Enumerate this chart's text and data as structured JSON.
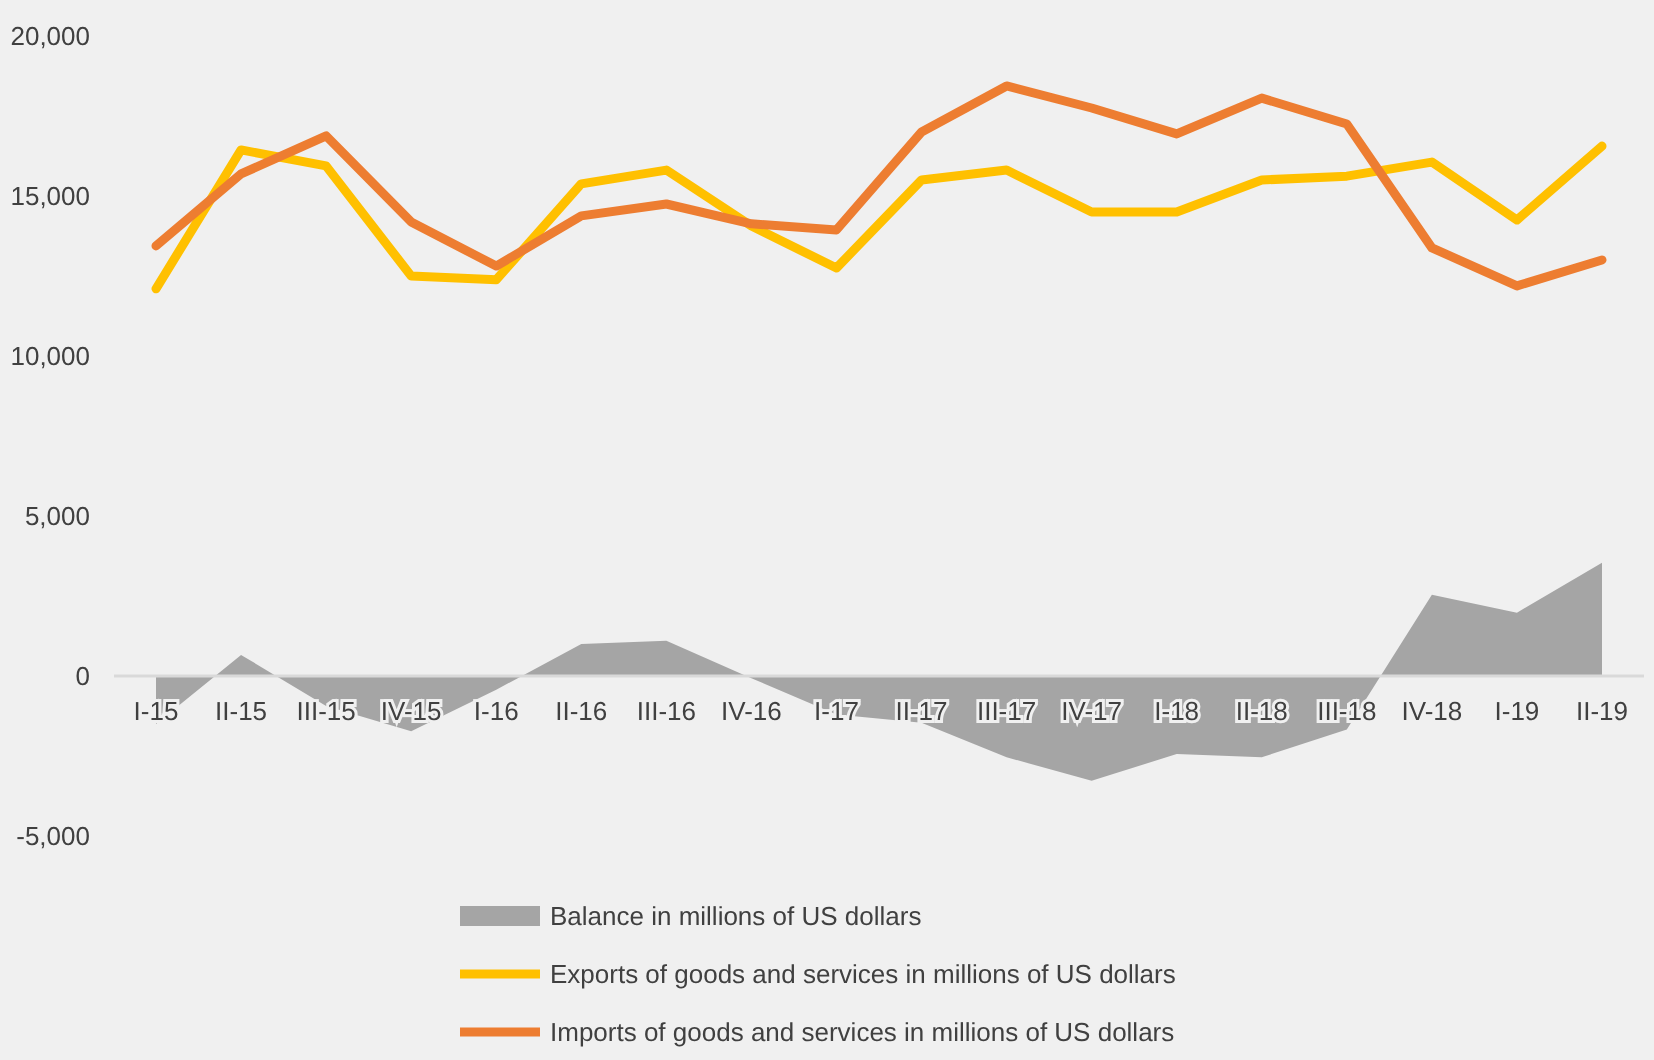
{
  "chart_data": {
    "type": "line",
    "categories": [
      "I-15",
      "II-15",
      "III-15",
      "IV-15",
      "I-16",
      "II-16",
      "III-16",
      "IV-16",
      "I-17",
      "II-17",
      "III-17",
      "IV-17",
      "I-18",
      "II-18",
      "III-18",
      "IV-18",
      "I-19",
      "II-19"
    ],
    "series": [
      {
        "name": "Balance in millions of US dollars",
        "type": "area",
        "color": "#a5a5a5",
        "values": [
          -1500,
          660,
          -940,
          -1730,
          -430,
          1000,
          1100,
          -70,
          -1200,
          -1460,
          -2540,
          -3270,
          -2440,
          -2540,
          -1670,
          2540,
          1980,
          3540
        ]
      },
      {
        "name": "Exports of goods and services in millions of US dollars",
        "color": "#ffc000",
        "values": [
          12100,
          16440,
          15940,
          12500,
          12380,
          15380,
          15810,
          14060,
          12750,
          15500,
          15810,
          14500,
          14500,
          15500,
          15620,
          16060,
          14250,
          16560
        ]
      },
      {
        "name": "Imports of goods and services in millions of US dollars",
        "color": "#ed7d31",
        "values": [
          13440,
          15690,
          16880,
          14190,
          12810,
          14380,
          14750,
          14130,
          13940,
          17000,
          18440,
          17750,
          16940,
          18060,
          17250,
          13380,
          12190,
          13000
        ]
      }
    ],
    "ylim": [
      -5000,
      20000
    ],
    "yticks": [
      {
        "value": -5000,
        "label": "-5,000"
      },
      0,
      {
        "value": 5000,
        "label": "5,000"
      },
      {
        "value": 10000,
        "label": "10,000"
      },
      {
        "value": 15000,
        "label": "15,000"
      },
      {
        "value": 20000,
        "label": "20,000"
      }
    ],
    "grid": false,
    "legend": "bottom",
    "marker": "none",
    "line_style": "solid"
  }
}
